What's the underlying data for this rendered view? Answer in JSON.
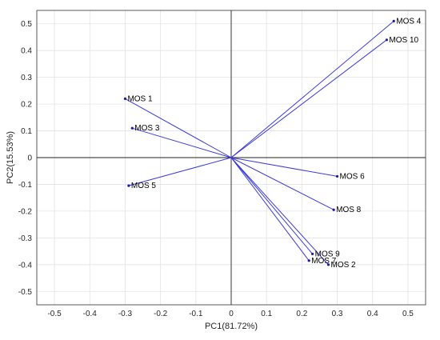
{
  "chart_data": {
    "type": "scatter",
    "subtype": "biplot-vectors",
    "title": "",
    "xlabel": "PC1(81.72%)",
    "ylabel": "PC2(15.53%)",
    "xlim": [
      -0.55,
      0.55
    ],
    "ylim": [
      -0.55,
      0.55
    ],
    "xticks": [
      -0.5,
      -0.4,
      -0.3,
      -0.2,
      -0.1,
      0,
      0.1,
      0.2,
      0.3,
      0.4,
      0.5
    ],
    "xtick_labels": [
      "-0.5",
      "-0.4",
      "-0.3",
      "-0.2",
      "-0.1",
      "0",
      "0.1",
      "0.2",
      "0.3",
      "0.4",
      "0.5"
    ],
    "yticks": [
      -0.5,
      -0.4,
      -0.3,
      -0.2,
      -0.1,
      0,
      0.1,
      0.2,
      0.3,
      0.4,
      0.5
    ],
    "ytick_labels": [
      "-0.5",
      "-0.4",
      "-0.3",
      "-0.2",
      "-0.1",
      "0",
      "0.1",
      "0.2",
      "0.3",
      "0.4",
      "0.5"
    ],
    "grid": true,
    "colors": {
      "vector": "#3b3bdc",
      "axis_line": "#222222",
      "grid": "#e3e3e3",
      "frame": "#333333"
    },
    "points": [
      {
        "label": "MOS 1",
        "x": -0.3,
        "y": 0.22
      },
      {
        "label": "MOS 3",
        "x": -0.28,
        "y": 0.11
      },
      {
        "label": "MOS 5",
        "x": -0.29,
        "y": -0.105
      },
      {
        "label": "MOS 4",
        "x": 0.46,
        "y": 0.51
      },
      {
        "label": "MOS 10",
        "x": 0.44,
        "y": 0.44
      },
      {
        "label": "MOS 6",
        "x": 0.3,
        "y": -0.07
      },
      {
        "label": "MOS 8",
        "x": 0.29,
        "y": -0.195
      },
      {
        "label": "MOS 9",
        "x": 0.23,
        "y": -0.36
      },
      {
        "label": "MOS 7",
        "x": 0.22,
        "y": -0.385
      },
      {
        "label": "MOS 2",
        "x": 0.275,
        "y": -0.4
      }
    ]
  }
}
